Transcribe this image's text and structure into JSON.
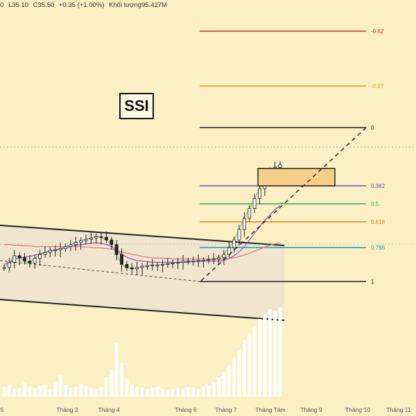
{
  "header": {
    "ohlc_fragment": "0",
    "low": "L35.10",
    "close": "C35.50",
    "change": "+0.35 (+1.00%)",
    "volume": "Khối lượng95.427M"
  },
  "symbol": "SSI",
  "colors": {
    "background": "#fbefc4",
    "candle": "#222222",
    "fast_ma": "#8fc08a",
    "mid_ma": "#9b59b6",
    "slow_ma": "#d98080",
    "channel_fill": "#efe3d2",
    "volume": "#ffffff",
    "highlight_zone": "#f5cf88"
  },
  "chart_data": {
    "type": "candlestick",
    "x_axis": {
      "tick_labels": [
        "5",
        "Tháng 3",
        "Tháng 4",
        "Tháng 6",
        "Tháng 7",
        "Tháng Tám",
        "Tháng 9",
        "Tháng 10",
        "Tháng 11"
      ]
    },
    "fibonacci_levels": [
      {
        "label": "-0.62",
        "color": "#c0392b"
      },
      {
        "label": "-0.27",
        "color": "#d4a017"
      },
      {
        "label": "0",
        "color": "#222222"
      },
      {
        "label": "0.382",
        "color": "#6a4fbf"
      },
      {
        "label": "0.5",
        "color": "#27ae60"
      },
      {
        "label": "0.618",
        "color": "#e67e22"
      },
      {
        "label": "0.786",
        "color": "#17a2b8"
      },
      {
        "label": "1",
        "color": "#222222"
      }
    ],
    "series": [
      {
        "values": [
          0.2,
          0.28,
          0.38,
          0.35,
          0.3,
          0.27,
          0.34,
          0.4,
          0.43,
          0.46,
          0.47,
          0.49,
          0.52,
          0.55,
          0.58,
          0.61,
          0.63,
          0.65,
          0.67,
          0.66,
          0.62,
          0.55,
          0.4,
          0.25,
          0.2,
          0.18,
          0.2,
          0.22,
          0.23,
          0.24,
          0.24,
          0.25,
          0.26,
          0.27,
          0.28,
          0.3,
          0.3,
          0.3,
          0.31,
          0.31,
          0.32,
          0.33,
          0.35,
          0.4,
          0.5,
          0.62,
          0.78,
          0.95,
          1.1,
          1.25,
          1.4,
          1.55,
          1.65,
          1.72,
          1.76
        ]
      },
      {
        "values": [
          0.25,
          0.28,
          0.32,
          0.35,
          0.36,
          0.37,
          0.39,
          0.41,
          0.43,
          0.45,
          0.47,
          0.48,
          0.5,
          0.52,
          0.54,
          0.55,
          0.56,
          0.57,
          0.58,
          0.57,
          0.55,
          0.52,
          0.46,
          0.4,
          0.36,
          0.33,
          0.31,
          0.3,
          0.29,
          0.28,
          0.28,
          0.28,
          0.28,
          0.28,
          0.28,
          0.28,
          0.28,
          0.29,
          0.29,
          0.3,
          0.3,
          0.3,
          0.3,
          0.31,
          0.34,
          0.38,
          0.44,
          0.52,
          0.62,
          0.72,
          0.82,
          0.92,
          1.0,
          1.08,
          1.14
        ]
      },
      {
        "values": [
          0.55,
          0.55,
          0.54,
          0.54,
          0.53,
          0.53,
          0.52,
          0.52,
          0.52,
          0.52,
          0.52,
          0.52,
          0.52,
          0.52,
          0.52,
          0.52,
          0.51,
          0.51,
          0.5,
          0.5,
          0.49,
          0.48,
          0.46,
          0.44,
          0.42,
          0.4,
          0.39,
          0.37,
          0.36,
          0.35,
          0.35,
          0.34,
          0.34,
          0.33,
          0.33,
          0.33,
          0.33,
          0.33,
          0.33,
          0.33,
          0.33,
          0.33,
          0.33,
          0.33,
          0.34,
          0.35,
          0.37,
          0.39,
          0.42,
          0.45,
          0.48,
          0.51,
          0.54,
          0.56,
          0.58
        ]
      }
    ],
    "volume": [
      0.1,
      0.12,
      0.08,
      0.09,
      0.14,
      0.1,
      0.09,
      0.11,
      0.12,
      0.08,
      0.15,
      0.22,
      0.12,
      0.09,
      0.1,
      0.13,
      0.11,
      0.09,
      0.08,
      0.1,
      0.2,
      0.28,
      0.55,
      0.35,
      0.18,
      0.12,
      0.1,
      0.09,
      0.08,
      0.09,
      0.1,
      0.08,
      0.07,
      0.08,
      0.09,
      0.08,
      0.1,
      0.09,
      0.08,
      0.1,
      0.12,
      0.15,
      0.2,
      0.25,
      0.32,
      0.4,
      0.48,
      0.58,
      0.65,
      0.72,
      0.8,
      0.85,
      0.9,
      0.88,
      0.92
    ],
    "grid": false,
    "legend": "none"
  }
}
